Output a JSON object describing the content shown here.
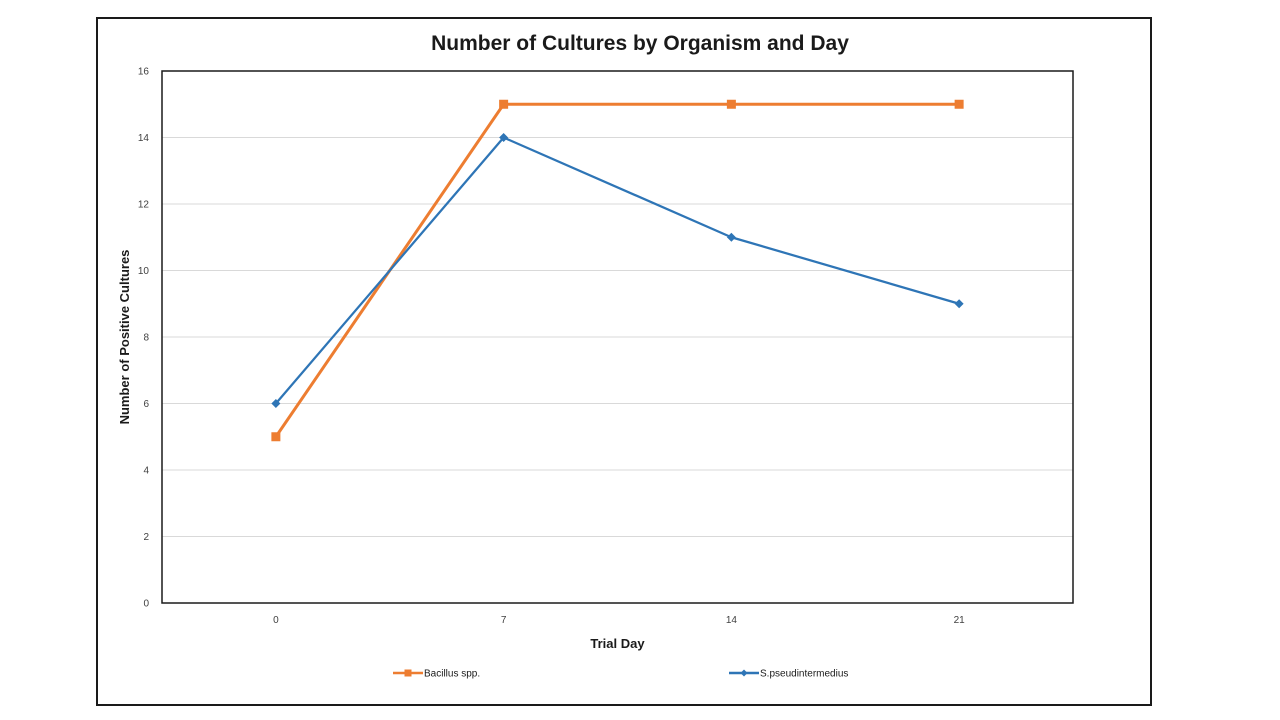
{
  "chart_data": {
    "type": "line",
    "title": "Number of Cultures by Organism and Day",
    "xlabel": "Trial Day",
    "ylabel": "Number of Positive Cultures",
    "categories": [
      "0",
      "7",
      "14",
      "21"
    ],
    "x": [
      0,
      7,
      14,
      21
    ],
    "ylim": [
      0,
      16
    ],
    "yticks": [
      0,
      2,
      4,
      6,
      8,
      10,
      12,
      14,
      16
    ],
    "grid": true,
    "legend_position": "bottom",
    "series": [
      {
        "name": "Bacillus spp.",
        "values": [
          5,
          15,
          15,
          15
        ],
        "color": "#ED7D31",
        "marker": "square"
      },
      {
        "name": "S.pseudintermedius",
        "values": [
          6,
          14,
          11,
          9
        ],
        "color": "#2E75B6",
        "marker": "diamond"
      }
    ]
  }
}
